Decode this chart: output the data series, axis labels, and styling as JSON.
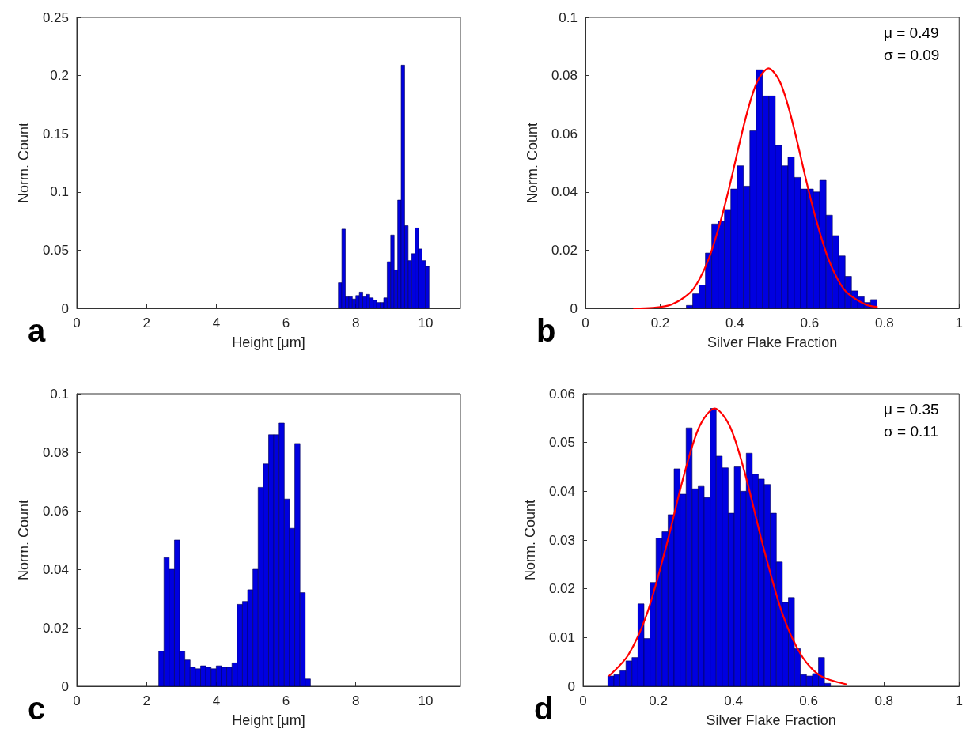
{
  "chart_data": [
    {
      "type": "histogram",
      "xlabel": "Height [μm]",
      "ylabel": "Norm. Count",
      "xlim": [
        0,
        11
      ],
      "xticks": [
        0,
        2,
        4,
        6,
        8,
        10
      ],
      "ylim": [
        0,
        0.25
      ],
      "yticks": [
        0,
        0.05,
        0.1,
        0.15,
        0.2,
        0.25
      ],
      "grid": false,
      "annotations": [
        "a"
      ],
      "color": "#0000e0",
      "bins": [
        7.5,
        7.6,
        7.7,
        7.8,
        7.9,
        8.0,
        8.1,
        8.2,
        8.3,
        8.4,
        8.5,
        8.6,
        8.7,
        8.8,
        8.9,
        9.0,
        9.1,
        9.2,
        9.3,
        9.4,
        9.5,
        9.6,
        9.7,
        9.8,
        9.9,
        10.0,
        10.1
      ],
      "values": [
        0.022,
        0.068,
        0.01,
        0.01,
        0.008,
        0.011,
        0.014,
        0.01,
        0.012,
        0.009,
        0.007,
        0.005,
        0.005,
        0.009,
        0.04,
        0.063,
        0.033,
        0.093,
        0.209,
        0.071,
        0.041,
        0.047,
        0.069,
        0.051,
        0.041,
        0.036
      ]
    },
    {
      "type": "histogram",
      "xlabel": "Silver Flake Fraction",
      "ylabel": "Norm. Count",
      "xlim": [
        0,
        1
      ],
      "xticks": [
        0,
        0.2,
        0.4,
        0.6,
        0.8,
        1
      ],
      "ylim": [
        0,
        0.1
      ],
      "yticks": [
        0,
        0.02,
        0.04,
        0.06,
        0.08,
        0.1
      ],
      "grid": false,
      "annotations": [
        "b",
        "μ = 0.49",
        "σ = 0.09"
      ],
      "series": [
        {
          "type": "histogram",
          "color": "#0000e0",
          "bins": [
            0.27,
            0.287,
            0.304,
            0.321,
            0.338,
            0.355,
            0.372,
            0.389,
            0.406,
            0.423,
            0.44,
            0.457,
            0.474,
            0.491,
            0.508,
            0.525,
            0.542,
            0.559,
            0.576,
            0.593,
            0.61,
            0.627,
            0.644,
            0.661,
            0.678,
            0.695,
            0.712,
            0.729,
            0.746,
            0.763,
            0.78
          ],
          "values": [
            0.001,
            0.005,
            0.008,
            0.019,
            0.029,
            0.03,
            0.034,
            0.041,
            0.049,
            0.042,
            0.061,
            0.082,
            0.073,
            0.073,
            0.056,
            0.049,
            0.052,
            0.045,
            0.041,
            0.041,
            0.04,
            0.044,
            0.032,
            0.025,
            0.018,
            0.011,
            0.006,
            0.004,
            0.002,
            0.003
          ]
        },
        {
          "type": "line",
          "color": "#ff0000",
          "x": [
            0.13,
            0.18,
            0.23,
            0.28,
            0.305,
            0.33,
            0.355,
            0.38,
            0.43,
            0.46,
            0.49,
            0.52,
            0.55,
            0.6,
            0.625,
            0.65,
            0.675,
            0.7,
            0.75,
            0.78
          ],
          "values": [
            0.0,
            0.0002,
            0.0013,
            0.0054,
            0.01,
            0.017,
            0.027,
            0.039,
            0.066,
            0.078,
            0.0825,
            0.078,
            0.066,
            0.039,
            0.027,
            0.017,
            0.01,
            0.0054,
            0.0013,
            0.0005
          ]
        }
      ]
    },
    {
      "type": "histogram",
      "xlabel": "Height [μm]",
      "ylabel": "Norm. Count",
      "xlim": [
        0,
        11
      ],
      "xticks": [
        0,
        2,
        4,
        6,
        8,
        10
      ],
      "ylim": [
        0,
        0.1
      ],
      "yticks": [
        0,
        0.02,
        0.04,
        0.06,
        0.08,
        0.1
      ],
      "grid": false,
      "annotations": [
        "c"
      ],
      "color": "#0000e0",
      "bins": [
        2.35,
        2.5,
        2.65,
        2.8,
        2.95,
        3.1,
        3.25,
        3.4,
        3.55,
        3.7,
        3.85,
        4.0,
        4.15,
        4.3,
        4.45,
        4.6,
        4.75,
        4.9,
        5.05,
        5.2,
        5.35,
        5.5,
        5.65,
        5.8,
        5.95,
        6.1,
        6.25,
        6.4,
        6.55,
        6.7
      ],
      "values": [
        0.012,
        0.044,
        0.04,
        0.05,
        0.012,
        0.009,
        0.0065,
        0.006,
        0.007,
        0.0065,
        0.006,
        0.007,
        0.0065,
        0.0065,
        0.008,
        0.028,
        0.029,
        0.033,
        0.04,
        0.068,
        0.076,
        0.086,
        0.086,
        0.09,
        0.064,
        0.054,
        0.083,
        0.032,
        0.0025
      ]
    },
    {
      "type": "histogram",
      "xlabel": "Silver Flake Fraction",
      "ylabel": "Norm. Count",
      "xlim": [
        0,
        1
      ],
      "xticks": [
        0,
        0.2,
        0.4,
        0.6,
        0.8,
        1
      ],
      "ylim": [
        0,
        0.06
      ],
      "yticks": [
        0,
        0.01,
        0.02,
        0.03,
        0.04,
        0.05,
        0.06
      ],
      "grid": false,
      "annotations": [
        "d",
        "μ = 0.35",
        "σ = 0.11"
      ],
      "series": [
        {
          "type": "histogram",
          "color": "#0000e0",
          "bins": [
            0.066,
            0.082,
            0.098,
            0.114,
            0.13,
            0.146,
            0.162,
            0.178,
            0.194,
            0.21,
            0.226,
            0.242,
            0.258,
            0.274,
            0.29,
            0.306,
            0.322,
            0.338,
            0.354,
            0.37,
            0.386,
            0.402,
            0.418,
            0.434,
            0.45,
            0.466,
            0.482,
            0.498,
            0.514,
            0.53,
            0.546,
            0.562,
            0.578,
            0.594,
            0.61,
            0.626,
            0.642,
            0.658
          ],
          "values": [
            0.0021,
            0.0024,
            0.0032,
            0.0052,
            0.0059,
            0.0169,
            0.0098,
            0.0213,
            0.0304,
            0.0317,
            0.0352,
            0.0446,
            0.0394,
            0.053,
            0.0405,
            0.041,
            0.0387,
            0.057,
            0.0472,
            0.0448,
            0.0355,
            0.045,
            0.04,
            0.0478,
            0.0435,
            0.0425,
            0.0414,
            0.0355,
            0.0255,
            0.0172,
            0.0182,
            0.0077,
            0.0024,
            0.0021,
            0.0026,
            0.0059,
            0.0006
          ]
        },
        {
          "type": "line",
          "color": "#ff0000",
          "x": [
            0.07,
            0.12,
            0.17,
            0.22,
            0.27,
            0.31,
            0.35,
            0.39,
            0.43,
            0.48,
            0.53,
            0.58,
            0.63,
            0.7
          ],
          "values": [
            0.0022,
            0.0064,
            0.0149,
            0.0284,
            0.0438,
            0.0534,
            0.057,
            0.0534,
            0.0438,
            0.0284,
            0.0149,
            0.0064,
            0.0022,
            0.0004
          ]
        }
      ]
    }
  ]
}
